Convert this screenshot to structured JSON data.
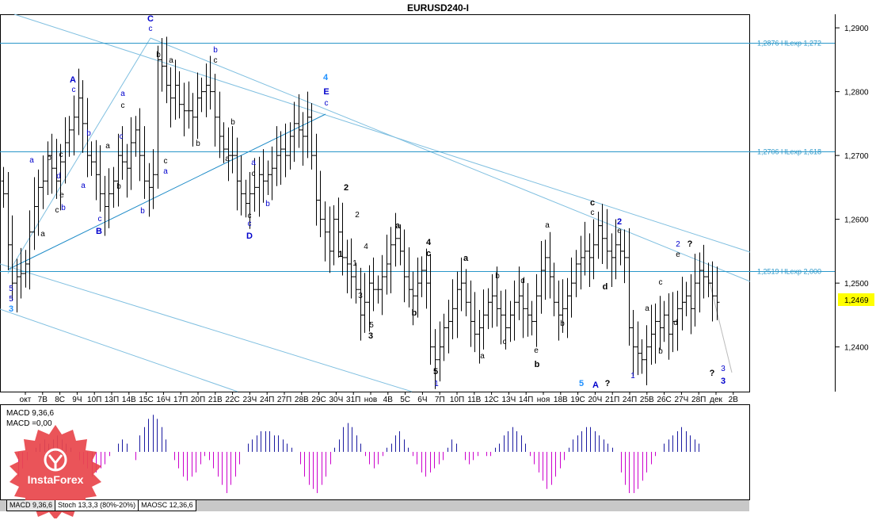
{
  "window": {
    "title": "EURUSD240-I"
  },
  "price_axis": {
    "ticks": [
      "1,2900",
      "1,2800",
      "1,2700",
      "1,2600",
      "1,2500",
      "1,2400"
    ],
    "current_price": "1,2469"
  },
  "levels": [
    {
      "price": 1.2876,
      "label": "1,2876 HLexp 1,272"
    },
    {
      "price": 1.2706,
      "label": "1,2706 HLexp 1,618"
    },
    {
      "price": 1.2519,
      "label": "1,2519 HLexp 2,000"
    }
  ],
  "time_axis": {
    "labels": [
      "окт",
      "7В",
      "8С",
      "9Ч",
      "10П",
      "13П",
      "14В",
      "15С",
      "16Ч",
      "17П",
      "20П",
      "21В",
      "22С",
      "23Ч",
      "24П",
      "27П",
      "28В",
      "29С",
      "30Ч",
      "31П",
      "нов",
      "4В",
      "5С",
      "6Ч",
      "7П",
      "10П",
      "11В",
      "12С",
      "13Ч",
      "14П",
      "ноя",
      "18В",
      "19С",
      "20Ч",
      "21П",
      "24П",
      "25В",
      "26С",
      "27Ч",
      "28П",
      "дек",
      "2В"
    ]
  },
  "indicator": {
    "line1": "MACD 9,36,6",
    "line2": "MACD =0,00",
    "tabs": [
      {
        "label": "MACD 9,36,6",
        "active": true
      },
      {
        "label": "Stoch 13,3,3 (80%-20%)",
        "active": false
      },
      {
        "label": "MAOSC 12,36,6",
        "active": false
      }
    ]
  },
  "logo": {
    "text": "InstaForex"
  },
  "chart_data": {
    "type": "ohlc",
    "symbol": "EURUSD240-I",
    "ylim": [
      1.233,
      1.292
    ],
    "closes": [
      1.264,
      1.256,
      1.25,
      1.251,
      1.2515,
      1.253,
      1.258,
      1.262,
      1.265,
      1.266,
      1.27,
      1.268,
      1.266,
      1.269,
      1.272,
      1.274,
      1.276,
      1.279,
      1.275,
      1.27,
      1.269,
      1.267,
      1.264,
      1.262,
      1.264,
      1.266,
      1.27,
      1.269,
      1.268,
      1.272,
      1.274,
      1.27,
      1.266,
      1.265,
      1.267,
      1.285,
      1.284,
      1.281,
      1.279,
      1.281,
      1.278,
      1.277,
      1.277,
      1.276,
      1.279,
      1.28,
      1.281,
      1.28,
      1.276,
      1.273,
      1.271,
      1.27,
      1.27,
      1.266,
      1.264,
      1.2625,
      1.264,
      1.265,
      1.267,
      1.266,
      1.267,
      1.268,
      1.27,
      1.271,
      1.27,
      1.273,
      1.275,
      1.274,
      1.273,
      1.276,
      1.27,
      1.263,
      1.26,
      1.258,
      1.255,
      1.26,
      1.258,
      1.254,
      1.253,
      1.251,
      1.249,
      1.245,
      1.247,
      1.25,
      1.249,
      1.249,
      1.251,
      1.253,
      1.256,
      1.257,
      1.255,
      1.251,
      1.249,
      1.248,
      1.25,
      1.252,
      1.25,
      1.24,
      1.238,
      1.24,
      1.243,
      1.244,
      1.246,
      1.249,
      1.25,
      1.247,
      1.244,
      1.242,
      1.243,
      1.245,
      1.247,
      1.248,
      1.246,
      1.245,
      1.243,
      1.245,
      1.247,
      1.248,
      1.246,
      1.245,
      1.244,
      1.248,
      1.252,
      1.254,
      1.251,
      1.247,
      1.245,
      1.246,
      1.248,
      1.25,
      1.253,
      1.254,
      1.255,
      1.254,
      1.256,
      1.259,
      1.257,
      1.255,
      1.254,
      1.256,
      1.255,
      1.254,
      1.243,
      1.24,
      1.239,
      1.238,
      1.24,
      1.242,
      1.244,
      1.243,
      1.245,
      1.242,
      1.244,
      1.246,
      1.247,
      1.248,
      1.246,
      1.25,
      1.252,
      1.251,
      1.25,
      1.248,
      1.247
    ],
    "macd_histogram": [
      0.0,
      0.0,
      -0.6,
      -0.4,
      -0.2,
      0.0,
      0.1,
      0.2,
      0.3,
      0.2,
      0.3,
      0.4,
      0.3,
      0.2,
      0.1,
      0.0,
      -0.2,
      -0.3,
      -0.4,
      -0.6,
      -0.5,
      -0.4,
      -0.3,
      -0.1,
      0.0,
      0.2,
      0.3,
      0.2,
      0.0,
      -0.2,
      0.4,
      0.6,
      0.8,
      0.9,
      0.8,
      0.6,
      0.3,
      0.0,
      -0.2,
      -0.4,
      -0.6,
      -0.7,
      -0.6,
      -0.5,
      -0.3,
      -0.1,
      -0.2,
      -0.4,
      -0.6,
      -0.8,
      -1.0,
      -0.8,
      -0.6,
      -0.3,
      0.0,
      0.2,
      0.3,
      0.4,
      0.5,
      0.5,
      0.5,
      0.4,
      0.4,
      0.3,
      0.2,
      0.1,
      0.0,
      -0.3,
      -0.6,
      -0.8,
      -0.9,
      -1.0,
      -0.8,
      -0.6,
      -0.3,
      0.1,
      0.3,
      0.6,
      0.7,
      0.6,
      0.4,
      0.2,
      -0.1,
      -0.3,
      -0.4,
      -0.3,
      -0.1,
      0.1,
      0.2,
      0.4,
      0.5,
      0.3,
      0.1,
      -0.1,
      -0.3,
      -0.5,
      -0.6,
      -0.5,
      -0.4,
      -0.3,
      -0.2,
      0.1,
      0.3,
      0.2,
      0.0,
      -0.2,
      -0.3,
      -0.2,
      -0.1,
      0.0,
      -0.1,
      -0.1,
      0.1,
      0.2,
      0.4,
      0.5,
      0.6,
      0.5,
      0.4,
      0.2,
      -0.1,
      -0.3,
      -0.5,
      -0.7,
      -0.9,
      -0.8,
      -0.6,
      -0.4,
      -0.2,
      0.1,
      0.3,
      0.4,
      0.5,
      0.6,
      0.6,
      0.5,
      0.4,
      0.3,
      0.2,
      0.1,
      0.0,
      -0.5,
      -0.8,
      -1.0,
      -1.0,
      -0.9,
      -0.7,
      -0.5,
      -0.3,
      -0.1,
      0.0,
      0.2,
      0.3,
      0.4,
      0.5,
      0.6,
      0.5,
      0.4,
      0.3,
      0.2
    ]
  },
  "wave_labels": [
    {
      "t": "C",
      "x": 190,
      "y": 27,
      "c": "#0000cc",
      "big": true
    },
    {
      "t": "c",
      "x": 190,
      "y": 39,
      "c": "#0000cc",
      "big": false
    },
    {
      "t": "A",
      "x": 92,
      "y": 104,
      "c": "#0000cc",
      "big": true
    },
    {
      "t": "c",
      "x": 93,
      "y": 116,
      "c": "#0000cc",
      "big": false
    },
    {
      "t": "a",
      "x": 155,
      "y": 121,
      "c": "#0000cc",
      "big": false
    },
    {
      "t": "c",
      "x": 155,
      "y": 136,
      "c": "#000000",
      "big": false
    },
    {
      "t": "b",
      "x": 112,
      "y": 171,
      "c": "#0000cc",
      "big": false
    },
    {
      "t": "a",
      "x": 136,
      "y": 187,
      "c": "#000000",
      "big": false
    },
    {
      "t": "c",
      "x": 153,
      "y": 175,
      "c": "#0000cc",
      "big": false
    },
    {
      "t": "a",
      "x": 40,
      "y": 205,
      "c": "#0000cc",
      "big": false
    },
    {
      "t": "b",
      "x": 62,
      "y": 202,
      "c": "#000000",
      "big": false
    },
    {
      "t": "c",
      "x": 77,
      "y": 198,
      "c": "#000000",
      "big": false
    },
    {
      "t": "d",
      "x": 74,
      "y": 225,
      "c": "#0000cc",
      "big": false
    },
    {
      "t": "e",
      "x": 78,
      "y": 249,
      "c": "#000000",
      "big": false
    },
    {
      "t": "b",
      "x": 80,
      "y": 265,
      "c": "#0000cc",
      "big": false
    },
    {
      "t": "c",
      "x": 72,
      "y": 268,
      "c": "#000000",
      "big": false
    },
    {
      "t": "a",
      "x": 105,
      "y": 237,
      "c": "#0000cc",
      "big": false
    },
    {
      "t": "b",
      "x": 150,
      "y": 238,
      "c": "#000000",
      "big": false
    },
    {
      "t": "c",
      "x": 126,
      "y": 279,
      "c": "#0000cc",
      "big": false
    },
    {
      "t": "B",
      "x": 125,
      "y": 295,
      "c": "#0000cc",
      "big": true
    },
    {
      "t": "b",
      "x": 180,
      "y": 269,
      "c": "#0000cc",
      "big": false
    },
    {
      "t": "a",
      "x": 54,
      "y": 298,
      "c": "#000000",
      "big": false
    },
    {
      "t": "b",
      "x": 200,
      "y": 72,
      "c": "#000000",
      "big": false
    },
    {
      "t": "a",
      "x": 216,
      "y": 79,
      "c": "#000000",
      "big": false
    },
    {
      "t": "c",
      "x": 209,
      "y": 206,
      "c": "#000000",
      "big": false
    },
    {
      "t": "a",
      "x": 209,
      "y": 219,
      "c": "#0000cc",
      "big": false
    },
    {
      "t": "b",
      "x": 272,
      "y": 66,
      "c": "#0000cc",
      "big": false
    },
    {
      "t": "c",
      "x": 272,
      "y": 79,
      "c": "#000000",
      "big": false
    },
    {
      "t": "b",
      "x": 294,
      "y": 157,
      "c": "#000000",
      "big": false
    },
    {
      "t": "a",
      "x": 287,
      "y": 203,
      "c": "#000000",
      "big": false
    },
    {
      "t": "a",
      "x": 320,
      "y": 208,
      "c": "#0000cc",
      "big": false
    },
    {
      "t": "c",
      "x": 320,
      "y": 222,
      "c": "#000000",
      "big": false
    },
    {
      "t": "b",
      "x": 250,
      "y": 184,
      "c": "#000000",
      "big": false
    },
    {
      "t": "c",
      "x": 315,
      "y": 275,
      "c": "#000000",
      "big": false
    },
    {
      "t": "c",
      "x": 315,
      "y": 285,
      "c": "#0000cc",
      "big": false
    },
    {
      "t": "D",
      "x": 315,
      "y": 301,
      "c": "#0000cc",
      "big": true
    },
    {
      "t": "b",
      "x": 338,
      "y": 260,
      "c": "#0000cc",
      "big": false
    },
    {
      "t": "4",
      "x": 411,
      "y": 101,
      "c": "#1e90ff",
      "big": true
    },
    {
      "t": "E",
      "x": 412,
      "y": 119,
      "c": "#0000cc",
      "big": true
    },
    {
      "t": "c",
      "x": 412,
      "y": 133,
      "c": "#0000cc",
      "big": false
    },
    {
      "t": "2",
      "x": 437,
      "y": 240,
      "c": "#000000",
      "big": true
    },
    {
      "t": "2",
      "x": 451,
      "y": 274,
      "c": "#000000",
      "big": false
    },
    {
      "t": "4",
      "x": 462,
      "y": 314,
      "c": "#000000",
      "big": false
    },
    {
      "t": "1",
      "x": 430,
      "y": 324,
      "c": "#000000",
      "big": true
    },
    {
      "t": "1",
      "x": 448,
      "y": 335,
      "c": "#000000",
      "big": false
    },
    {
      "t": "3",
      "x": 455,
      "y": 376,
      "c": "#000000",
      "big": false
    },
    {
      "t": "5",
      "x": 469,
      "y": 413,
      "c": "#000000",
      "big": false
    },
    {
      "t": "3",
      "x": 468,
      "y": 427,
      "c": "#000000",
      "big": true
    },
    {
      "t": "a",
      "x": 502,
      "y": 288,
      "c": "#000000",
      "big": true
    },
    {
      "t": "b",
      "x": 523,
      "y": 398,
      "c": "#000000",
      "big": true
    },
    {
      "t": "4",
      "x": 541,
      "y": 309,
      "c": "#000000",
      "big": true
    },
    {
      "t": "c",
      "x": 541,
      "y": 323,
      "c": "#000000",
      "big": true
    },
    {
      "t": "5",
      "x": 550,
      "y": 472,
      "c": "#000000",
      "big": true
    },
    {
      "t": "1",
      "x": 551,
      "y": 487,
      "c": "#0000cc",
      "big": false
    },
    {
      "t": "a",
      "x": 588,
      "y": 329,
      "c": "#000000",
      "big": true
    },
    {
      "t": "b",
      "x": 628,
      "y": 351,
      "c": "#000000",
      "big": false
    },
    {
      "t": "d",
      "x": 660,
      "y": 357,
      "c": "#000000",
      "big": false
    },
    {
      "t": "c",
      "x": 637,
      "y": 434,
      "c": "#000000",
      "big": false
    },
    {
      "t": "a",
      "x": 609,
      "y": 452,
      "c": "#000000",
      "big": false
    },
    {
      "t": "e",
      "x": 677,
      "y": 445,
      "c": "#000000",
      "big": false
    },
    {
      "t": "b",
      "x": 678,
      "y": 463,
      "c": "#000000",
      "big": true
    },
    {
      "t": "a",
      "x": 691,
      "y": 287,
      "c": "#000000",
      "big": false
    },
    {
      "t": "b",
      "x": 710,
      "y": 411,
      "c": "#000000",
      "big": false
    },
    {
      "t": "c",
      "x": 748,
      "y": 259,
      "c": "#000000",
      "big": true
    },
    {
      "t": "c",
      "x": 748,
      "y": 271,
      "c": "#000000",
      "big": false
    },
    {
      "t": "2",
      "x": 782,
      "y": 283,
      "c": "#0000cc",
      "big": true
    },
    {
      "t": "e",
      "x": 782,
      "y": 294,
      "c": "#000000",
      "big": false
    },
    {
      "t": "d",
      "x": 764,
      "y": 365,
      "c": "#000000",
      "big": true
    },
    {
      "t": "5",
      "x": 734,
      "y": 487,
      "c": "#1e90ff",
      "big": true
    },
    {
      "t": "A",
      "x": 752,
      "y": 489,
      "c": "#0000cc",
      "big": true
    },
    {
      "t": "?",
      "x": 767,
      "y": 487,
      "c": "#000000",
      "big": true
    },
    {
      "t": "1",
      "x": 799,
      "y": 477,
      "c": "#0000cc",
      "big": false
    },
    {
      "t": "a",
      "x": 817,
      "y": 392,
      "c": "#000000",
      "big": false
    },
    {
      "t": "b",
      "x": 834,
      "y": 446,
      "c": "#000000",
      "big": false
    },
    {
      "t": "c",
      "x": 834,
      "y": 359,
      "c": "#000000",
      "big": false
    },
    {
      "t": "d",
      "x": 853,
      "y": 410,
      "c": "#000000",
      "big": false
    },
    {
      "t": "2",
      "x": 856,
      "y": 311,
      "c": "#0000cc",
      "big": false
    },
    {
      "t": "e",
      "x": 856,
      "y": 324,
      "c": "#000000",
      "big": false
    },
    {
      "t": "?",
      "x": 871,
      "y": 311,
      "c": "#000000",
      "big": true
    },
    {
      "t": "?",
      "x": 899,
      "y": 474,
      "c": "#000000",
      "big": true
    },
    {
      "t": "3",
      "x": 913,
      "y": 468,
      "c": "#0000cc",
      "big": false
    },
    {
      "t": "3",
      "x": 913,
      "y": 484,
      "c": "#0000cc",
      "big": true
    },
    {
      "t": "5",
      "x": 14,
      "y": 367,
      "c": "#0000cc",
      "big": false
    },
    {
      "t": "5",
      "x": 14,
      "y": 380,
      "c": "#0000cc",
      "big": false
    },
    {
      "t": "3",
      "x": 14,
      "y": 393,
      "c": "#1e90ff",
      "big": true
    }
  ]
}
